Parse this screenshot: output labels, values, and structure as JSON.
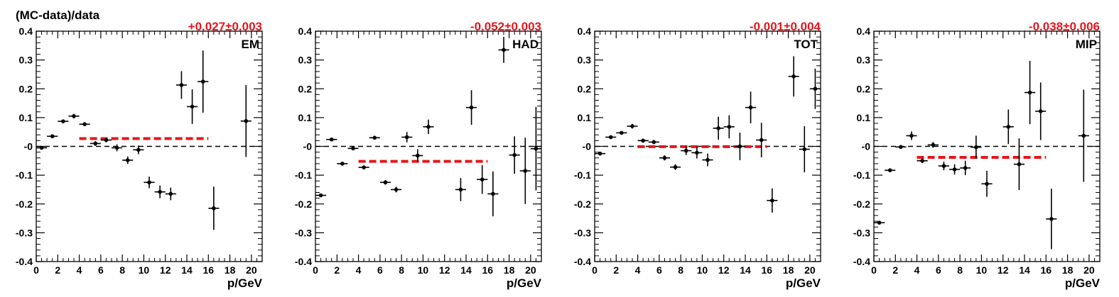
{
  "chart_data": [
    {
      "type": "scatter",
      "ylabel": "(MC-data)/data",
      "xlabel": "p/GeV",
      "tag": "EM",
      "fit_text": "+0.027±0.003",
      "fit_value": 0.027,
      "fit_range": [
        4,
        16
      ],
      "xlim": [
        0,
        21
      ],
      "ylim": [
        -0.4,
        0.4
      ],
      "x_ticks": [
        0,
        2,
        4,
        6,
        8,
        10,
        12,
        14,
        16,
        18,
        20
      ],
      "x_tick_labels": [
        "0",
        "2",
        "4",
        "6",
        "8",
        "10",
        "12",
        "14",
        "16",
        "18",
        "20"
      ],
      "y_ticks": [
        -0.4,
        -0.3,
        -0.2,
        -0.1,
        0,
        0.1,
        0.2,
        0.3,
        0.4
      ],
      "y_tick_labels": [
        "-0.4",
        "-0.3",
        "-0.2",
        "-0.1",
        "-0",
        "0.1",
        "0.2",
        "0.3",
        "0.4"
      ],
      "points": [
        {
          "x": 0.5,
          "y": -0.005,
          "yerr": 0.004
        },
        {
          "x": 1.5,
          "y": 0.035,
          "yerr": 0.005
        },
        {
          "x": 2.5,
          "y": 0.087,
          "yerr": 0.006
        },
        {
          "x": 3.5,
          "y": 0.105,
          "yerr": 0.008
        },
        {
          "x": 4.5,
          "y": 0.077,
          "yerr": 0.007
        },
        {
          "x": 5.5,
          "y": 0.01,
          "yerr": 0.008
        },
        {
          "x": 6.5,
          "y": 0.022,
          "yerr": 0.008
        },
        {
          "x": 7.5,
          "y": -0.005,
          "yerr": 0.012
        },
        {
          "x": 8.5,
          "y": -0.048,
          "yerr": 0.013
        },
        {
          "x": 9.5,
          "y": -0.012,
          "yerr": 0.015
        },
        {
          "x": 10.5,
          "y": -0.125,
          "yerr": 0.02
        },
        {
          "x": 11.5,
          "y": -0.158,
          "yerr": 0.022
        },
        {
          "x": 12.5,
          "y": -0.165,
          "yerr": 0.022
        },
        {
          "x": 13.5,
          "y": 0.213,
          "yerr": 0.048
        },
        {
          "x": 14.5,
          "y": 0.138,
          "yerr": 0.06
        },
        {
          "x": 15.5,
          "y": 0.225,
          "yerr": 0.108
        },
        {
          "x": 16.5,
          "y": -0.215,
          "yerr": 0.075
        },
        {
          "x": 19.5,
          "y": 0.088,
          "yerr": 0.125
        }
      ]
    },
    {
      "type": "scatter",
      "xlabel": "p/GeV",
      "tag": "HAD",
      "fit_text": "-0.052±0.003",
      "fit_value": -0.052,
      "fit_range": [
        4,
        16
      ],
      "xlim": [
        0,
        21
      ],
      "ylim": [
        -0.4,
        0.4
      ],
      "x_ticks": [
        0,
        2,
        4,
        6,
        8,
        10,
        12,
        14,
        16,
        18,
        20
      ],
      "x_tick_labels": [
        "0",
        "2",
        "4",
        "6",
        "8",
        "10",
        "12",
        "14",
        "16",
        "18",
        "20"
      ],
      "y_ticks": [
        -0.4,
        -0.3,
        -0.2,
        -0.1,
        0,
        0.1,
        0.2,
        0.3,
        0.4
      ],
      "y_tick_labels": [
        "-0.4",
        "-0.3",
        "-0.2",
        "-0.1",
        "-0",
        "0.1",
        "0.2",
        "0.3",
        "0.4"
      ],
      "points": [
        {
          "x": 0.5,
          "y": -0.17,
          "yerr": 0.004
        },
        {
          "x": 1.5,
          "y": 0.024,
          "yerr": 0.005
        },
        {
          "x": 2.5,
          "y": -0.06,
          "yerr": 0.005
        },
        {
          "x": 3.5,
          "y": -0.007,
          "yerr": 0.006
        },
        {
          "x": 4.5,
          "y": -0.073,
          "yerr": 0.007
        },
        {
          "x": 5.5,
          "y": 0.03,
          "yerr": 0.007
        },
        {
          "x": 6.5,
          "y": -0.125,
          "yerr": 0.008
        },
        {
          "x": 7.5,
          "y": -0.15,
          "yerr": 0.01
        },
        {
          "x": 8.5,
          "y": 0.032,
          "yerr": 0.018
        },
        {
          "x": 9.5,
          "y": -0.032,
          "yerr": 0.022
        },
        {
          "x": 10.5,
          "y": 0.068,
          "yerr": 0.025
        },
        {
          "x": 13.5,
          "y": -0.15,
          "yerr": 0.04
        },
        {
          "x": 14.5,
          "y": 0.135,
          "yerr": 0.06
        },
        {
          "x": 15.5,
          "y": -0.115,
          "yerr": 0.05
        },
        {
          "x": 16.5,
          "y": -0.165,
          "yerr": 0.078
        },
        {
          "x": 17.5,
          "y": 0.335,
          "yerr": 0.045
        },
        {
          "x": 18.5,
          "y": -0.03,
          "yerr": 0.065
        },
        {
          "x": 19.5,
          "y": -0.085,
          "yerr": 0.115
        },
        {
          "x": 20.5,
          "y": -0.008,
          "yerr": 0.145
        }
      ]
    },
    {
      "type": "scatter",
      "xlabel": "p/GeV",
      "tag": "TOT",
      "fit_text": "-0.001±0.004",
      "fit_value": -0.001,
      "fit_range": [
        4,
        16
      ],
      "xlim": [
        0,
        21
      ],
      "ylim": [
        -0.4,
        0.4
      ],
      "x_ticks": [
        0,
        2,
        4,
        6,
        8,
        10,
        12,
        14,
        16,
        18,
        20
      ],
      "x_tick_labels": [
        "0",
        "2",
        "4",
        "6",
        "8",
        "10",
        "12",
        "14",
        "16",
        "18",
        "20"
      ],
      "y_ticks": [
        -0.4,
        -0.3,
        -0.2,
        -0.1,
        0,
        0.1,
        0.2,
        0.3,
        0.4
      ],
      "y_tick_labels": [
        "-0.4",
        "-0.3",
        "-0.2",
        "-0.1",
        "-0",
        "0.1",
        "0.2",
        "0.3",
        "0.4"
      ],
      "points": [
        {
          "x": 0.5,
          "y": -0.025,
          "yerr": 0.004
        },
        {
          "x": 1.5,
          "y": 0.032,
          "yerr": 0.005
        },
        {
          "x": 2.5,
          "y": 0.047,
          "yerr": 0.006
        },
        {
          "x": 3.5,
          "y": 0.07,
          "yerr": 0.008
        },
        {
          "x": 4.5,
          "y": 0.02,
          "yerr": 0.007
        },
        {
          "x": 5.5,
          "y": 0.015,
          "yerr": 0.007
        },
        {
          "x": 6.5,
          "y": -0.04,
          "yerr": 0.009
        },
        {
          "x": 7.5,
          "y": -0.072,
          "yerr": 0.01
        },
        {
          "x": 8.5,
          "y": -0.015,
          "yerr": 0.015
        },
        {
          "x": 9.5,
          "y": -0.022,
          "yerr": 0.02
        },
        {
          "x": 10.5,
          "y": -0.047,
          "yerr": 0.022
        },
        {
          "x": 11.5,
          "y": 0.063,
          "yerr": 0.04
        },
        {
          "x": 12.5,
          "y": 0.068,
          "yerr": 0.04
        },
        {
          "x": 13.5,
          "y": 0.0,
          "yerr": 0.048
        },
        {
          "x": 14.5,
          "y": 0.135,
          "yerr": 0.055
        },
        {
          "x": 15.5,
          "y": 0.022,
          "yerr": 0.06
        },
        {
          "x": 16.5,
          "y": -0.188,
          "yerr": 0.042
        },
        {
          "x": 18.5,
          "y": 0.243,
          "yerr": 0.07
        },
        {
          "x": 19.5,
          "y": -0.01,
          "yerr": 0.08
        },
        {
          "x": 20.5,
          "y": 0.2,
          "yerr": 0.07
        }
      ]
    },
    {
      "type": "scatter",
      "xlabel": "p/GeV",
      "tag": "MIP",
      "fit_text": "-0.038±0.006",
      "fit_value": -0.038,
      "fit_range": [
        4,
        16
      ],
      "xlim": [
        0,
        21
      ],
      "ylim": [
        -0.4,
        0.4
      ],
      "x_ticks": [
        0,
        2,
        4,
        6,
        8,
        10,
        12,
        14,
        16,
        18,
        20
      ],
      "x_tick_labels": [
        "0",
        "2",
        "4",
        "6",
        "8",
        "10",
        "12",
        "14",
        "16",
        "18",
        "20"
      ],
      "y_ticks": [
        -0.4,
        -0.3,
        -0.2,
        -0.1,
        0,
        0.1,
        0.2,
        0.3,
        0.4
      ],
      "y_tick_labels": [
        "-0.4",
        "-0.3",
        "-0.2",
        "-0.1",
        "-0",
        "0.1",
        "0.2",
        "0.3",
        "0.4"
      ],
      "points": [
        {
          "x": 0.5,
          "y": -0.265,
          "yerr": 0.004
        },
        {
          "x": 1.5,
          "y": -0.083,
          "yerr": 0.005
        },
        {
          "x": 2.5,
          "y": -0.002,
          "yerr": 0.005
        },
        {
          "x": 3.5,
          "y": 0.037,
          "yerr": 0.015
        },
        {
          "x": 4.5,
          "y": -0.05,
          "yerr": 0.008
        },
        {
          "x": 5.5,
          "y": 0.005,
          "yerr": 0.01
        },
        {
          "x": 6.5,
          "y": -0.068,
          "yerr": 0.015
        },
        {
          "x": 7.5,
          "y": -0.08,
          "yerr": 0.018
        },
        {
          "x": 8.5,
          "y": -0.075,
          "yerr": 0.025
        },
        {
          "x": 9.5,
          "y": -0.003,
          "yerr": 0.04
        },
        {
          "x": 10.5,
          "y": -0.13,
          "yerr": 0.045
        },
        {
          "x": 12.5,
          "y": 0.068,
          "yerr": 0.06
        },
        {
          "x": 13.5,
          "y": -0.062,
          "yerr": 0.09
        },
        {
          "x": 14.5,
          "y": 0.187,
          "yerr": 0.11
        },
        {
          "x": 15.5,
          "y": 0.122,
          "yerr": 0.1
        },
        {
          "x": 16.5,
          "y": -0.252,
          "yerr": 0.105
        },
        {
          "x": 19.5,
          "y": 0.037,
          "yerr": 0.16
        }
      ]
    }
  ]
}
